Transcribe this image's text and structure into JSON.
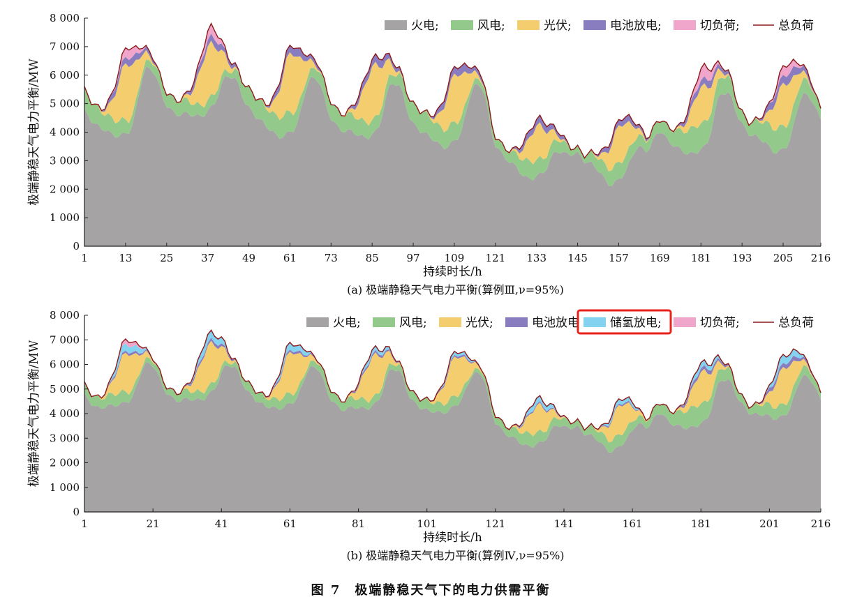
{
  "figure_title": "图 7　极端静稳天气下的电力供需平衡",
  "colors": {
    "thermal": "#a5a3a4",
    "wind": "#94c98c",
    "solar": "#f4cd6e",
    "battery": "#8a7dbf",
    "hydrogen": "#83d3f0",
    "shed": "#f0a6cb",
    "load": "#8b1a1a",
    "highlight": "#e8221b"
  },
  "chart_data": [
    {
      "type": "area",
      "caption": "(a) 极端静稳天气电力平衡(算例Ⅲ,ν=95%)",
      "xlabel": "持续时长/h",
      "ylabel": "极端静稳天气电力平衡/MW",
      "xlim": [
        1,
        216
      ],
      "ylim": [
        0,
        8000
      ],
      "x_ticks": [
        1,
        13,
        25,
        37,
        49,
        61,
        73,
        85,
        97,
        109,
        121,
        133,
        145,
        157,
        169,
        181,
        193,
        205,
        216
      ],
      "y_ticks": [
        0,
        1000,
        2000,
        3000,
        4000,
        5000,
        6000,
        7000,
        8000
      ],
      "y_tick_labels": [
        "0",
        "1 000",
        "2 000",
        "3 000",
        "4 000",
        "5 000",
        "6 000",
        "7 000",
        "8 000"
      ],
      "legend_position": "top-right",
      "legend": [
        {
          "label": "火电;",
          "color": "#a5a3a4",
          "kind": "box"
        },
        {
          "label": "风电;",
          "color": "#94c98c",
          "kind": "box"
        },
        {
          "label": "光伏;",
          "color": "#f4cd6e",
          "kind": "box"
        },
        {
          "label": "电池放电;",
          "color": "#8a7dbf",
          "kind": "box"
        },
        {
          "label": "切负荷;",
          "color": "#f0a6cb",
          "kind": "box"
        },
        {
          "label": "总负荷",
          "color": "#8b1a1a",
          "kind": "line"
        }
      ],
      "days": [
        {
          "start": 1,
          "thermal": [
            4700,
            3800,
            6200
          ],
          "wind": [
            700,
            500,
            200
          ],
          "solar": 2000,
          "battery": 400,
          "shed": 350
        },
        {
          "start": 25,
          "thermal": [
            5000,
            4600,
            6000
          ],
          "wind": [
            500,
            400,
            200
          ],
          "solar": 1900,
          "battery": 400,
          "shed": 350
        },
        {
          "start": 49,
          "thermal": [
            4800,
            3800,
            5900
          ],
          "wind": [
            650,
            700,
            300
          ],
          "solar": 2100,
          "battery": 450,
          "shed": 0
        },
        {
          "start": 73,
          "thermal": [
            4500,
            3800,
            5700
          ],
          "wind": [
            600,
            550,
            300
          ],
          "solar": 1900,
          "battery": 450,
          "shed": 0
        },
        {
          "start": 97,
          "thermal": [
            4300,
            3500,
            5700
          ],
          "wind": [
            700,
            650,
            200
          ],
          "solar": 1700,
          "battery": 450,
          "shed": 0
        },
        {
          "start": 121,
          "thermal": [
            3500,
            2300,
            3300
          ],
          "wind": [
            300,
            600,
            400
          ],
          "solar": 1200,
          "battery": 400,
          "shed": 0
        },
        {
          "start": 145,
          "thermal": [
            3300,
            2200,
            3500
          ],
          "wind": [
            200,
            600,
            400
          ],
          "solar": 1300,
          "battery": 350,
          "shed": 0
        },
        {
          "start": 169,
          "thermal": [
            4000,
            3200,
            5400
          ],
          "wind": [
            400,
            900,
            600
          ],
          "solar": 1300,
          "battery": 400,
          "shed": 450
        },
        {
          "start": 193,
          "thermal": [
            4300,
            3300,
            5300
          ],
          "wind": [
            400,
            850,
            500
          ],
          "solar": 1500,
          "battery": 500,
          "shed": 350
        }
      ]
    },
    {
      "type": "area",
      "caption": "(b) 极端静稳天气电力平衡(算例Ⅳ,ν=95%)",
      "xlabel": "持续时长/h",
      "ylabel": "极端静稳天气电力平衡/MW",
      "xlim": [
        1,
        216
      ],
      "ylim": [
        0,
        8000
      ],
      "x_ticks": [
        1,
        21,
        41,
        61,
        81,
        101,
        121,
        141,
        161,
        181,
        201,
        216
      ],
      "y_ticks": [
        0,
        1000,
        2000,
        3000,
        4000,
        5000,
        6000,
        7000,
        8000
      ],
      "y_tick_labels": [
        "0",
        "1 000",
        "2 000",
        "3 000",
        "4 000",
        "5 000",
        "6 000",
        "7 000",
        "8 000"
      ],
      "legend_position": "top-right",
      "legend": [
        {
          "label": "火电;",
          "color": "#a5a3a4",
          "kind": "box"
        },
        {
          "label": "风电;",
          "color": "#94c98c",
          "kind": "box"
        },
        {
          "label": "光伏;",
          "color": "#f4cd6e",
          "kind": "box"
        },
        {
          "label": "电池放电",
          "color": "#8a7dbf",
          "kind": "box"
        },
        {
          "label": "储氢放电;",
          "color": "#83d3f0",
          "kind": "box",
          "highlight": true
        },
        {
          "label": "切负荷;",
          "color": "#f0a6cb",
          "kind": "box"
        },
        {
          "label": "总负荷",
          "color": "#8b1a1a",
          "kind": "line"
        }
      ],
      "days": [
        {
          "start": 1,
          "thermal": [
            4700,
            4300,
            6000
          ],
          "wind": [
            400,
            450,
            150
          ],
          "solar": 1600,
          "battery": 150,
          "hydrogen": 300,
          "shed": 200
        },
        {
          "start": 25,
          "thermal": [
            4900,
            4600,
            6000
          ],
          "wind": [
            300,
            350,
            150
          ],
          "solar": 1700,
          "battery": 200,
          "hydrogen": 350,
          "shed": 0
        },
        {
          "start": 49,
          "thermal": [
            4800,
            4200,
            5900
          ],
          "wind": [
            350,
            400,
            200
          ],
          "solar": 1700,
          "battery": 150,
          "hydrogen": 300,
          "shed": 0
        },
        {
          "start": 73,
          "thermal": [
            4600,
            4200,
            5800
          ],
          "wind": [
            400,
            350,
            200
          ],
          "solar": 1700,
          "battery": 150,
          "hydrogen": 200,
          "shed": 0
        },
        {
          "start": 97,
          "thermal": [
            4500,
            4100,
            5700
          ],
          "wind": [
            350,
            400,
            150
          ],
          "solar": 1600,
          "battery": 120,
          "hydrogen": 150,
          "shed": 0
        },
        {
          "start": 121,
          "thermal": [
            3600,
            2600,
            3500
          ],
          "wind": [
            300,
            500,
            300
          ],
          "solar": 1100,
          "battery": 100,
          "hydrogen": 250,
          "shed": 0
        },
        {
          "start": 145,
          "thermal": [
            3500,
            2500,
            3600
          ],
          "wind": [
            250,
            500,
            300
          ],
          "solar": 1200,
          "battery": 100,
          "hydrogen": 200,
          "shed": 0
        },
        {
          "start": 169,
          "thermal": [
            4000,
            3400,
            5400
          ],
          "wind": [
            400,
            800,
            500
          ],
          "solar": 1300,
          "battery": 250,
          "hydrogen": 250,
          "shed": 0
        },
        {
          "start": 193,
          "thermal": [
            4400,
            3800,
            5500
          ],
          "wind": [
            300,
            500,
            350
          ],
          "solar": 1500,
          "battery": 300,
          "hydrogen": 350,
          "shed": 0
        }
      ]
    }
  ]
}
